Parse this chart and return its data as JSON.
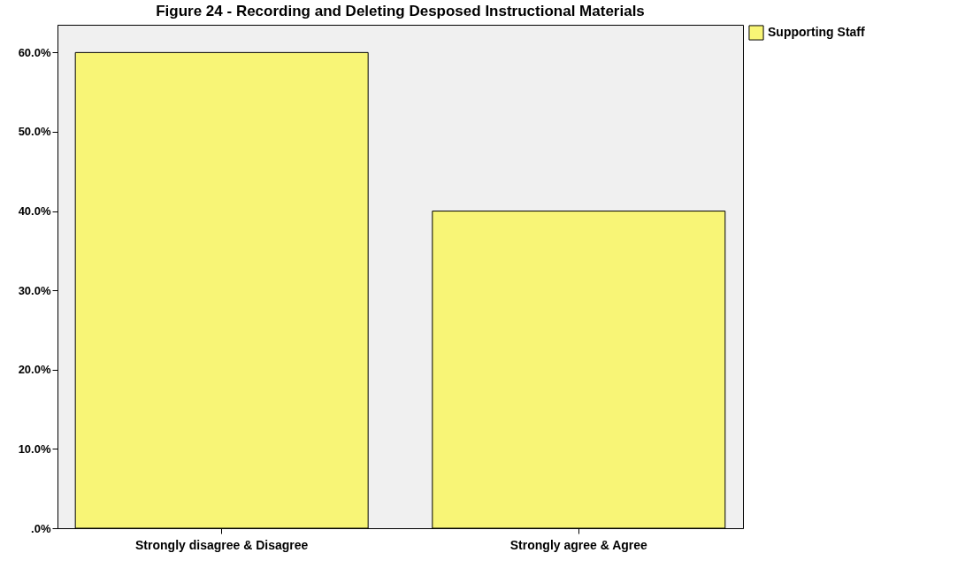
{
  "chart_data": {
    "type": "bar",
    "title": "Figure 24 -  Recording and Deleting Desposed Instructional Materials",
    "categories": [
      "Strongly disagree & Disagree",
      "Strongly agree & Agree"
    ],
    "series": [
      {
        "name": "Supporting Staff",
        "color": "#f8f576",
        "values": [
          60,
          40
        ]
      }
    ],
    "ylim": [
      0,
      63.5
    ],
    "yticks": [
      {
        "value": 0,
        "label": ".0%"
      },
      {
        "value": 10,
        "label": "10.0%"
      },
      {
        "value": 20,
        "label": "20.0%"
      },
      {
        "value": 30,
        "label": "30.0%"
      },
      {
        "value": 40,
        "label": "40.0%"
      },
      {
        "value": 50,
        "label": "50.0%"
      },
      {
        "value": 60,
        "label": "60.0%"
      }
    ],
    "grid": false,
    "legend": "top right"
  }
}
